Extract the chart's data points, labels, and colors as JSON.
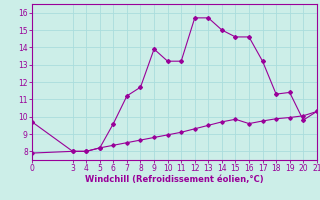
{
  "xlabel": "Windchill (Refroidissement éolien,°C)",
  "bg_color": "#cceee8",
  "line_color": "#990099",
  "grid_color": "#aadddd",
  "series1_x": [
    0,
    3,
    4,
    5,
    6,
    7,
    8,
    9,
    10,
    11,
    12,
    13,
    14,
    15,
    16,
    17,
    18,
    19,
    20,
    21
  ],
  "series1_y": [
    9.7,
    8.0,
    8.0,
    8.2,
    9.6,
    11.2,
    11.7,
    13.9,
    13.2,
    13.2,
    15.7,
    15.7,
    15.0,
    14.6,
    14.6,
    13.2,
    11.3,
    11.4,
    9.8,
    10.3
  ],
  "series2_x": [
    0,
    3,
    4,
    5,
    6,
    7,
    8,
    9,
    10,
    11,
    12,
    13,
    14,
    15,
    16,
    17,
    18,
    19,
    20,
    21
  ],
  "series2_y": [
    7.9,
    8.0,
    8.0,
    8.2,
    8.35,
    8.5,
    8.65,
    8.8,
    8.95,
    9.1,
    9.3,
    9.5,
    9.7,
    9.85,
    9.6,
    9.75,
    9.88,
    9.95,
    10.05,
    10.3
  ],
  "xlim": [
    0,
    21
  ],
  "ylim": [
    7.5,
    16.5
  ],
  "yticks": [
    8,
    9,
    10,
    11,
    12,
    13,
    14,
    15,
    16
  ],
  "xticks": [
    0,
    3,
    4,
    5,
    6,
    7,
    8,
    9,
    10,
    11,
    12,
    13,
    14,
    15,
    16,
    17,
    18,
    19,
    20,
    21
  ]
}
